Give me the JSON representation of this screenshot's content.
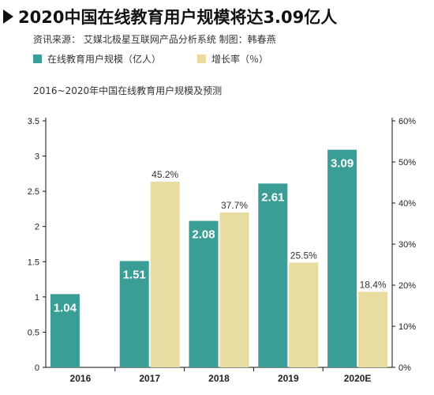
{
  "header": {
    "title": "2020中国在线教育用户规模将达3.09亿人",
    "source": "资讯来源：  艾媒北极星互联网产品分析系统      制图：韩春燕"
  },
  "colors": {
    "users": "#3a9d96",
    "growth": "#e8dca1",
    "axis": "#111111",
    "label_on_bar": "#ffffff",
    "label_above": "#333333"
  },
  "chart_data": {
    "type": "bar",
    "title": "2016~2020年中国在线教育用户规模及预测",
    "categories": [
      "2016",
      "2017",
      "2018",
      "2019",
      "2020E"
    ],
    "series": [
      {
        "name": "在线教育用户规模（亿人）",
        "axis": "left",
        "values": [
          1.04,
          1.51,
          2.08,
          2.61,
          3.09
        ],
        "labels": [
          "1.04",
          "1.51",
          "2.08",
          "2.61",
          "3.09"
        ]
      },
      {
        "name": "增长率（％）",
        "axis": "right",
        "values": [
          null,
          45.2,
          37.7,
          25.5,
          18.4
        ],
        "labels": [
          "",
          "45.2%",
          "37.7%",
          "25.5%",
          "18.4%"
        ]
      }
    ],
    "y_left": {
      "range": [
        0,
        3.5
      ],
      "ticks": [
        0,
        0.5,
        1,
        1.5,
        2,
        2.5,
        3,
        3.5
      ],
      "tick_labels": [
        "0",
        "0.5",
        "1",
        "1.5",
        "2",
        "2.5",
        "3",
        "3.5"
      ]
    },
    "y_right": {
      "range": [
        0,
        60
      ],
      "ticks": [
        0,
        10,
        20,
        30,
        40,
        50,
        60
      ],
      "tick_labels": [
        "0%",
        "10%",
        "20%",
        "30%",
        "40%",
        "50%",
        "60%"
      ]
    },
    "grid": false,
    "legend_position": "top-left"
  }
}
